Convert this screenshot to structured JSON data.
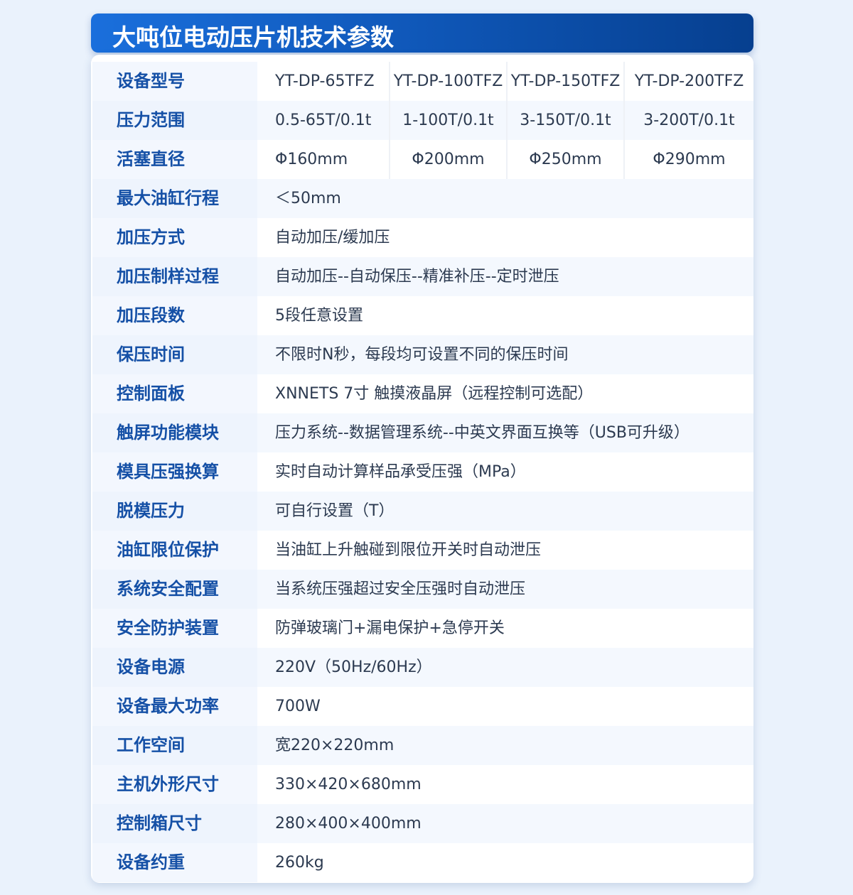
{
  "title": "大吨位电动压片机技术参数",
  "colors": {
    "accent": "#0f57b8",
    "label_text": "#1550a6",
    "page_bg": "#eaf2fc"
  },
  "rows": [
    {
      "label": "设备型号",
      "values": [
        "YT-DP-65TFZ",
        "YT-DP-100TFZ",
        "YT-DP-150TFZ",
        "YT-DP-200TFZ"
      ]
    },
    {
      "label": "压力范围",
      "values": [
        "0.5-65T/0.1t",
        "1-100T/0.1t",
        "3-150T/0.1t",
        "3-200T/0.1t"
      ]
    },
    {
      "label": "活塞直径",
      "values": [
        "Φ160mm",
        "Φ200mm",
        "Φ250mm",
        "Φ290mm"
      ]
    },
    {
      "label": "最大油缸行程",
      "values": [
        "＜50mm"
      ]
    },
    {
      "label": "加压方式",
      "values": [
        "自动加压/缓加压"
      ]
    },
    {
      "label": "加压制样过程",
      "values": [
        "自动加压--自动保压--精准补压--定时泄压"
      ]
    },
    {
      "label": "加压段数",
      "values": [
        "5段任意设置"
      ]
    },
    {
      "label": "保压时间",
      "values": [
        "不限时N秒，每段均可设置不同的保压时间"
      ]
    },
    {
      "label": "控制面板",
      "values": [
        "XNNETS 7寸 触摸液晶屏（远程控制可选配）"
      ]
    },
    {
      "label": "触屏功能模块",
      "values": [
        "压力系统--数据管理系统--中英文界面互换等（USB可升级）"
      ]
    },
    {
      "label": "模具压强换算",
      "values": [
        "实时自动计算样品承受压强（MPa）"
      ]
    },
    {
      "label": "脱模压力",
      "values": [
        "可自行设置（T）"
      ]
    },
    {
      "label": "油缸限位保护",
      "values": [
        "当油缸上升触碰到限位开关时自动泄压"
      ]
    },
    {
      "label": "系统安全配置",
      "values": [
        "当系统压强超过安全压强时自动泄压"
      ]
    },
    {
      "label": "安全防护装置",
      "values": [
        "防弹玻璃门+漏电保护+急停开关"
      ]
    },
    {
      "label": "设备电源",
      "values": [
        "220V（50Hz/60Hz）"
      ]
    },
    {
      "label": "设备最大功率",
      "values": [
        "700W"
      ]
    },
    {
      "label": "工作空间",
      "values": [
        "宽220×220mm"
      ]
    },
    {
      "label": "主机外形尺寸",
      "values": [
        "330×420×680mm"
      ]
    },
    {
      "label": "控制箱尺寸",
      "values": [
        "280×400×400mm"
      ]
    },
    {
      "label": "设备约重",
      "values": [
        "260kg"
      ]
    }
  ]
}
